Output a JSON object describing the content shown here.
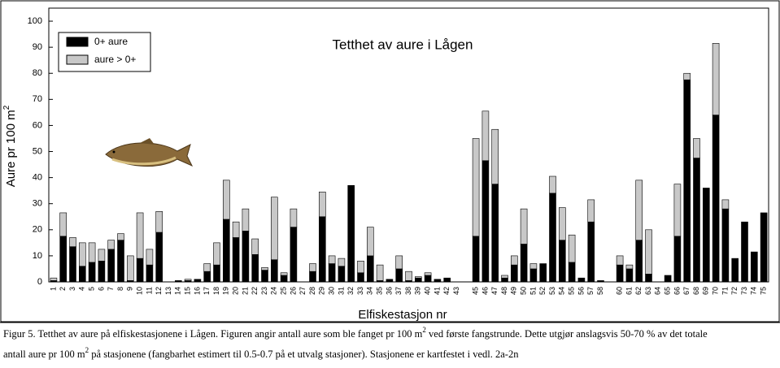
{
  "chart_data": {
    "type": "stacked_bar",
    "title": "Tetthet av aure i Lågen",
    "y_label": "Aure pr 100 m",
    "y_label_sup": "2",
    "x_label": "Elfiskestasjon nr",
    "categories": [
      "1",
      "2",
      "3",
      "4",
      "5",
      "6",
      "7",
      "8",
      "9",
      "10",
      "11",
      "12",
      "13",
      "14",
      "15",
      "16",
      "17",
      "18",
      "19",
      "20",
      "21",
      "22",
      "23",
      "24",
      "25",
      "26",
      "27",
      "28",
      "29",
      "30",
      "31",
      "32",
      "33",
      "34",
      "35",
      "36",
      "37",
      "38",
      "39",
      "40",
      "41",
      "42",
      "43",
      null,
      "45",
      "46",
      "47",
      "48",
      "49",
      "50",
      "51",
      "52",
      "53",
      "54",
      "55",
      "56",
      "57",
      "58",
      null,
      "60",
      "61",
      "62",
      "63",
      "64",
      "65",
      "66",
      "67",
      "68",
      "69",
      "70",
      "71",
      "72",
      "73",
      "74",
      "75"
    ],
    "series": [
      {
        "name": "0+ aure",
        "color": "#000000",
        "values": [
          0.5,
          17.5,
          13.5,
          6,
          7.5,
          8,
          12.5,
          16,
          0.5,
          9,
          6.5,
          19,
          0,
          0.5,
          0.5,
          1,
          4,
          6.5,
          24,
          17,
          19.5,
          10.5,
          4.5,
          8.5,
          2.5,
          21,
          0,
          4,
          25,
          7,
          6,
          37,
          3.5,
          10,
          0.5,
          1,
          5,
          0.5,
          1.5,
          2.5,
          1,
          1.5,
          0,
          null,
          17.5,
          46.5,
          37.5,
          1.5,
          6.5,
          14.5,
          5,
          7,
          34,
          16,
          7.5,
          1.5,
          23,
          0.5,
          null,
          6.5,
          5,
          16,
          3,
          0,
          2.5,
          17.5,
          77.5,
          47.5,
          36,
          64,
          28,
          9,
          23,
          11.5,
          26.5
        ]
      },
      {
        "name": "aure > 0+",
        "color": "#c8c8c8",
        "values": [
          1,
          9,
          3.5,
          9,
          7.5,
          4.5,
          3.5,
          2.5,
          9.5,
          17.5,
          6,
          8,
          0,
          0,
          0.5,
          0,
          3,
          8.5,
          15,
          6,
          8.5,
          6,
          1,
          24,
          1,
          7,
          0,
          3,
          9.5,
          3,
          3,
          0,
          4.5,
          11,
          6,
          0,
          5,
          3.5,
          0.5,
          1,
          0,
          0,
          0,
          null,
          37.5,
          19,
          21,
          1,
          3.5,
          13.5,
          2,
          0,
          6.5,
          12.5,
          10.5,
          0,
          8.5,
          0,
          null,
          3.5,
          1.5,
          23,
          17,
          0,
          0,
          20,
          2.5,
          7.5,
          0,
          27.5,
          3.5,
          0,
          0,
          0,
          0
        ]
      }
    ],
    "ylim": [
      0,
      105
    ],
    "yticks": [
      0,
      10,
      20,
      30,
      40,
      50,
      60,
      70,
      80,
      90,
      100
    ],
    "legend": "top-left"
  },
  "caption": {
    "line1_a": "Figur 5. Tetthet av aure på elfiskestasjonene i Lågen. Figuren angir antall aure som ble fanget pr 100 m",
    "line1_sup": "2",
    "line1_b": " ved første fangstrunde. Dette utgjør anslagsvis 50-70 % av det totale",
    "line2_a": "antall aure pr 100 m",
    "line2_sup": "2",
    "line2_b": " på stasjonene (fangbarhet estimert til 0.5-0.7 på et utvalg stasjoner). Stasjonene er kartfestet i vedl. 2a-2n"
  }
}
